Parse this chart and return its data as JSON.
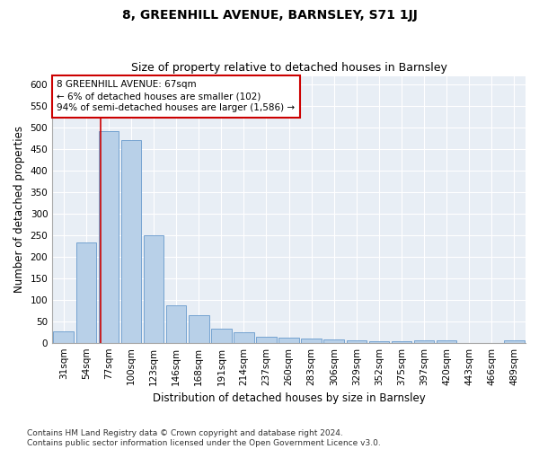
{
  "title": "8, GREENHILL AVENUE, BARNSLEY, S71 1JJ",
  "subtitle": "Size of property relative to detached houses in Barnsley",
  "xlabel": "Distribution of detached houses by size in Barnsley",
  "ylabel": "Number of detached properties",
  "bar_color": "#b8d0e8",
  "bar_edge_color": "#6699cc",
  "background_color": "#e8eef5",
  "grid_color": "#ffffff",
  "categories": [
    "31sqm",
    "54sqm",
    "77sqm",
    "100sqm",
    "123sqm",
    "146sqm",
    "168sqm",
    "191sqm",
    "214sqm",
    "237sqm",
    "260sqm",
    "283sqm",
    "306sqm",
    "329sqm",
    "352sqm",
    "375sqm",
    "397sqm",
    "420sqm",
    "443sqm",
    "466sqm",
    "489sqm"
  ],
  "values": [
    26,
    233,
    492,
    470,
    250,
    88,
    63,
    33,
    24,
    13,
    12,
    10,
    8,
    5,
    4,
    4,
    6,
    6,
    0,
    0,
    5
  ],
  "ylim": [
    0,
    620
  ],
  "yticks": [
    0,
    50,
    100,
    150,
    200,
    250,
    300,
    350,
    400,
    450,
    500,
    550,
    600
  ],
  "property_line_x": 1.65,
  "property_line_color": "#cc0000",
  "annotation_line1": "8 GREENHILL AVENUE: 67sqm",
  "annotation_line2": "← 6% of detached houses are smaller (102)",
  "annotation_line3": "94% of semi-detached houses are larger (1,586) →",
  "annotation_box_color": "#cc0000",
  "footnote": "Contains HM Land Registry data © Crown copyright and database right 2024.\nContains public sector information licensed under the Open Government Licence v3.0.",
  "title_fontsize": 10,
  "subtitle_fontsize": 9,
  "axis_label_fontsize": 8.5,
  "tick_fontsize": 7.5,
  "annotation_fontsize": 7.5,
  "footnote_fontsize": 6.5
}
